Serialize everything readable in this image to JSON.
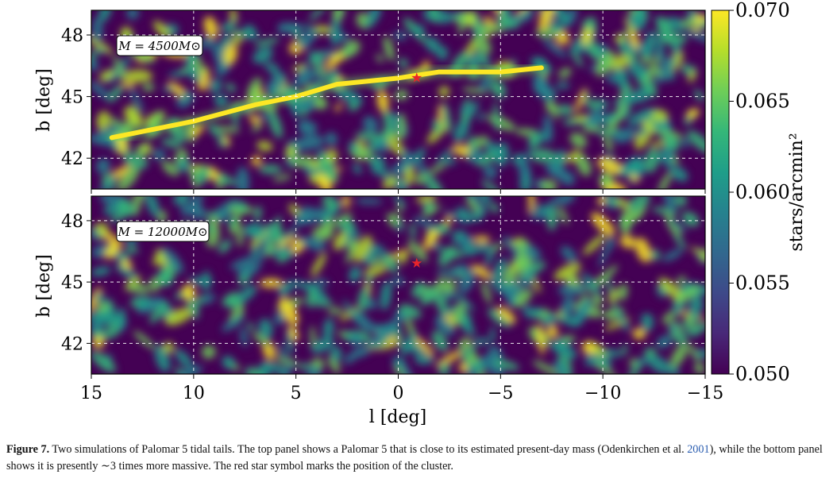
{
  "chart_data": [
    {
      "type": "heatmap",
      "panel": "top",
      "annotation": "M = 4500M⊙",
      "xlabel": "",
      "ylabel": "b [deg]",
      "xlim": [
        15,
        -15
      ],
      "ylim": [
        40.5,
        49.2
      ],
      "xticks": [
        15,
        10,
        5,
        0,
        -5,
        -10,
        -15
      ],
      "yticks": [
        48,
        45,
        42
      ],
      "ytick_labels": [
        "48",
        "45",
        "42"
      ],
      "grid": true,
      "cluster_marker": {
        "l": -0.9,
        "b": 45.9,
        "symbol": "star",
        "color": "#e8242b"
      },
      "tidal_tail": {
        "visible": true,
        "path": [
          [
            14,
            43.0
          ],
          [
            10,
            43.8
          ],
          [
            7,
            44.6
          ],
          [
            5,
            45.0
          ],
          [
            3,
            45.6
          ],
          [
            0,
            45.9
          ],
          [
            -2,
            46.2
          ],
          [
            -5,
            46.2
          ],
          [
            -7,
            46.4
          ]
        ]
      }
    },
    {
      "type": "heatmap",
      "panel": "bottom",
      "annotation": "M = 12000M⊙",
      "xlabel": "l [deg]",
      "ylabel": "b [deg]",
      "xlim": [
        15,
        -15
      ],
      "ylim": [
        40.5,
        49.2
      ],
      "xticks": [
        15,
        10,
        5,
        0,
        -5,
        -10,
        -15
      ],
      "xtick_labels": [
        "15",
        "10",
        "5",
        "0",
        "−5",
        "−10",
        "−15"
      ],
      "yticks": [
        48,
        45,
        42
      ],
      "ytick_labels": [
        "48",
        "45",
        "42"
      ],
      "grid": true,
      "cluster_marker": {
        "l": -0.9,
        "b": 45.9,
        "symbol": "star",
        "color": "#e8242b"
      },
      "tidal_tail": {
        "visible": false
      }
    }
  ],
  "colorbar": {
    "label": "stars/arcmin²",
    "min": 0.05,
    "max": 0.07,
    "ticks": [
      0.07,
      0.065,
      0.06,
      0.055,
      0.05
    ],
    "tick_labels": [
      "0.070",
      "0.065",
      "0.060",
      "0.055",
      "0.050"
    ],
    "colormap": "viridis",
    "colors": [
      "#440154",
      "#482878",
      "#3e4989",
      "#31688e",
      "#26828e",
      "#1f9e89",
      "#35b779",
      "#6ece58",
      "#b5de2b",
      "#fde725"
    ]
  },
  "caption": {
    "label": "Figure 7.",
    "text_before_cite": " Two simulations of Palomar 5 tidal tails. The top panel shows a Palomar 5 that is close to its estimated present-day mass (Odenkirchen et al. ",
    "cite_year": "2001",
    "text_after_cite": "), while the bottom panel shows it is presently ∼3 times more massive. The red star symbol marks the position of the cluster."
  }
}
